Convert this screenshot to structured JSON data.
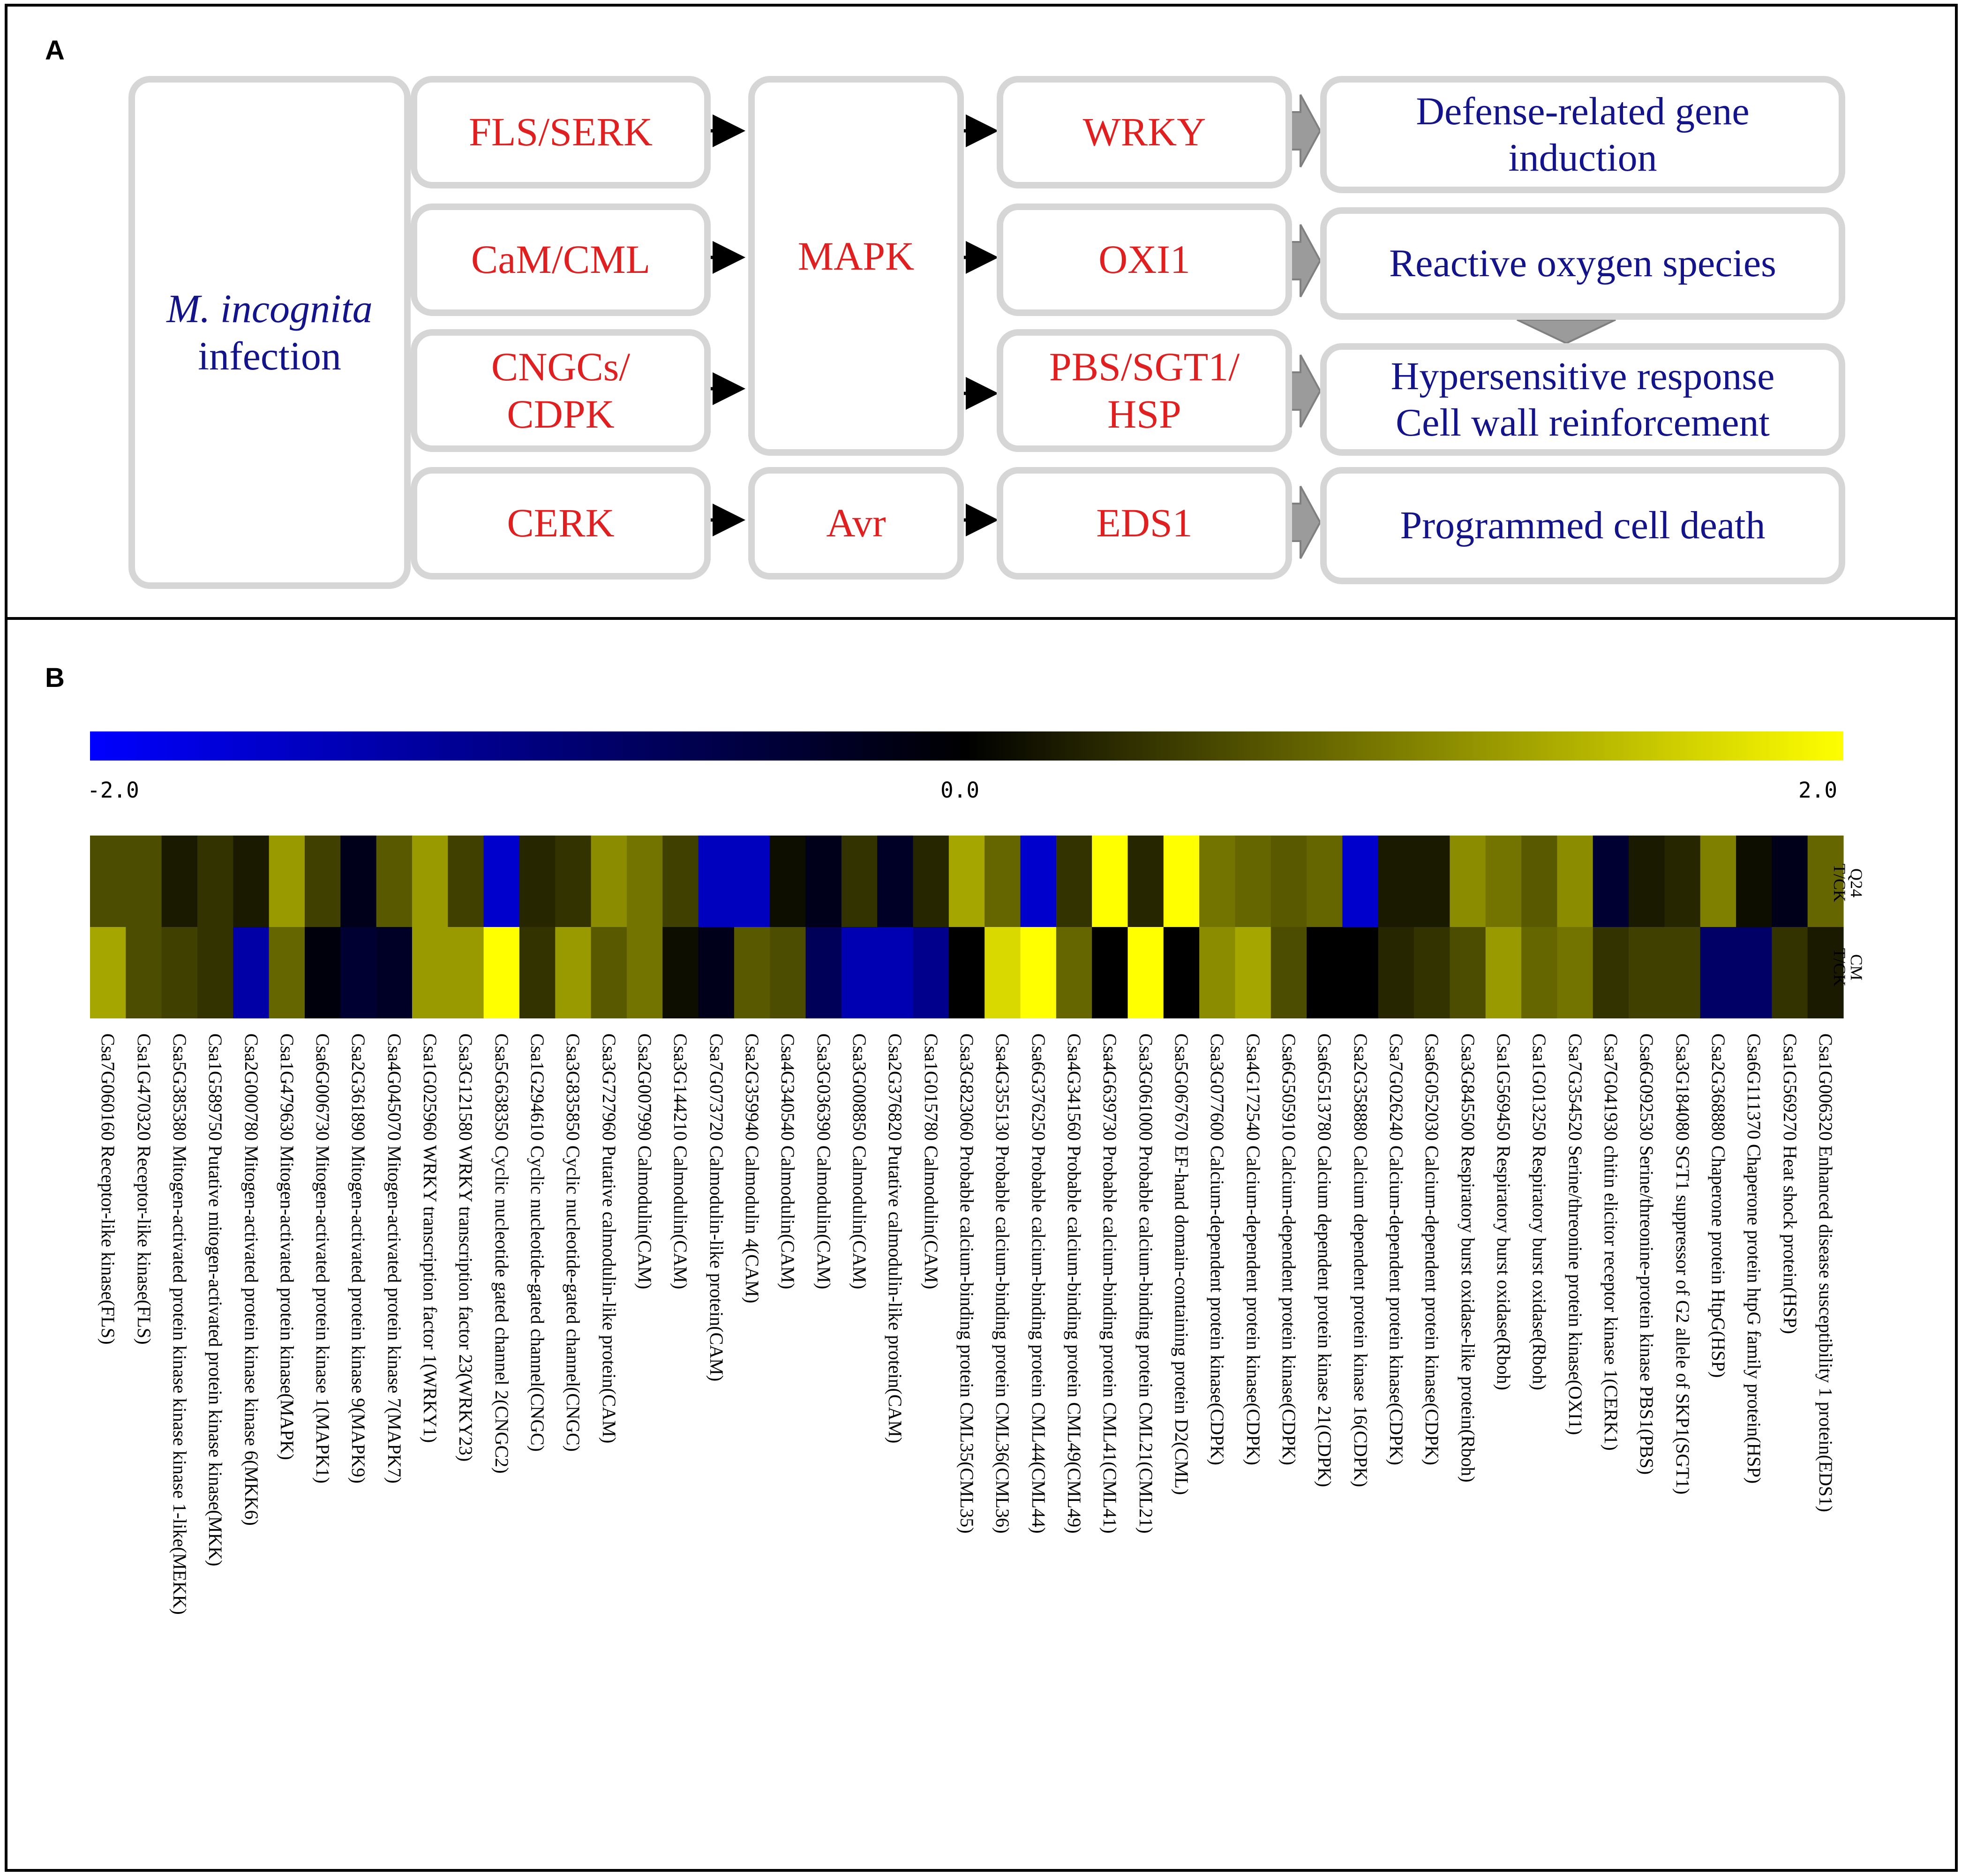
{
  "panel_a": {
    "label": "A",
    "source": "M. incognita",
    "source_suffix": "infection",
    "receptors": [
      "FLS/SERK",
      "CaM/CML",
      "CNGCs/\nCDPK",
      "CERK"
    ],
    "mapk": "MAPK",
    "avr": "Avr",
    "mediators": [
      "WRKY",
      "OXI1",
      "PBS/SGT1/\nHSP",
      "EDS1"
    ],
    "outcomes": [
      "Defense-related gene\ninduction",
      "Reactive oxygen species",
      "Hypersensitive response\nCell wall reinforcement",
      "Programmed cell death"
    ]
  },
  "panel_b": {
    "label": "B",
    "scale": {
      "min_label": "-2.0",
      "mid_label": "0.0",
      "max_label": "2.0",
      "min": -2.0,
      "max": 2.0,
      "color_low": "#0000ff",
      "color_mid": "#000000",
      "color_high": "#ffff00"
    },
    "row_labels": [
      "Q24\nT/CK",
      "CM\nT/CK"
    ],
    "genes": [
      "Csa7G060160 Receptor-like kinase(FLS)",
      "Csa1G470320 Receptor-like kinase(FLS)",
      "Csa5G385380 Mitogen-activated protein kinase kinase kinase 1-like(MEKK)",
      "Csa1G589750 Putative mitogen-activated protein kinase kinase(MKK)",
      "Csa2G000780 Mitogen-activated protein kinase kinase 6(MKK6)",
      "Csa1G479630 Mitogen-activated protein kinase(MAPK)",
      "Csa6G006730 Mitogen-activated protein kinase 1(MAPK1)",
      "Csa2G361890 Mitogen-activated protein kinase 9(MAPK9)",
      "Csa4G045070 Mitogen-activated protein kinase 7(MAPK7)",
      "Csa1G025960 WRKY transcription factor 1(WRKY1)",
      "Csa3G121580 WRKY transcription factor 23(WRKY23)",
      "Csa5G638350 Cyclic nucleotide gated channel 2(CNGC2)",
      "Csa1G294610 Cyclic nucleotide-gated channel(CNGC)",
      "Csa3G835850 Cyclic nucleotide-gated channel(CNGC)",
      "Csa3G727960 Putative calmodulin-like protein(CAM)",
      "Csa2G007990 Calmodulin(CAM)",
      "Csa3G144210 Calmodulin(CAM)",
      "Csa7G073720 Calmodulin-like protein(CAM)",
      "Csa2G359940 Calmodulin 4(CAM)",
      "Csa4G340540 Calmodulin(CAM)",
      "Csa3G036390 Calmodulin(CAM)",
      "Csa3G008850 Calmodulin(CAM)",
      "Csa2G376820 Putative calmodulin-like protein(CAM)",
      "Csa1G015780 Calmodulin(CAM)",
      "Csa3G823060 Probable calcium-binding protein CML35(CML35)",
      "Csa4G355130 Probable calcium-binding protein CML36(CML36)",
      "Csa6G376250 Probable calcium-binding protein CML44(CML44)",
      "Csa4G341560 Probable calcium-binding protein CML49(CML49)",
      "Csa4G639730 Probable calcium-binding protein CML41(CML41)",
      "Csa3G061000 Probable calcium-binding protein CML21(CML21)",
      "Csa5G067670 EF-hand domain-containing protein D2(CML)",
      "Csa3G077600 Calcium-dependent protein kinase(CDPK)",
      "Csa4G172540 Calcium-dependent protein kinase(CDPK)",
      "Csa6G505910 Calcium-dependent protein kinase(CDPK)",
      "Csa6G513780 Calcium dependent protein kinase 21(CDPK)",
      "Csa2G358880 Calcium dependent protein kinase 16(CDPK)",
      "Csa7G026240 Calcium-dependent protein kinase(CDPK)",
      "Csa6G052030 Calcium-dependent protein kinase(CDPK)",
      "Csa3G845500 Respiratory burst oxidase-like protein(Rboh)",
      "Csa1G569450 Respiratory burst oxidase(Rboh)",
      "Csa1G013250 Respiratory burst oxidase(Rboh)",
      "Csa7G354520 Serine/threonine protein kinase(OXI1)",
      "Csa7G041930 chitin elicitor receptor kinase 1(CERK1)",
      "Csa6G092530 Serine/threonine-protein kinase PBS1(PBS)",
      "Csa3G184080 SGT1 suppressor of G2 allele of SKP1(SGT1)",
      "Csa2G368880 Chaperone protein HtpG(HSP)",
      "Csa6G111370 Chaperone protein htpG family protein(HSP)",
      "Csa1G569270 Heat shock protein(HSP)",
      "Csa1G006320 Enhanced disease susceptibility 1 protein(EDS1)"
    ],
    "values_q24": [
      0.6,
      0.6,
      0.2,
      0.4,
      0.2,
      1.2,
      0.5,
      -0.2,
      0.7,
      1.2,
      0.5,
      -1.6,
      0.3,
      0.4,
      1.1,
      0.9,
      0.5,
      -1.5,
      -1.5,
      0.1,
      -0.2,
      0.4,
      -0.3,
      0.3,
      1.3,
      0.8,
      -1.6,
      0.4,
      2.0,
      0.3,
      2.0,
      0.9,
      0.8,
      0.7,
      0.8,
      -1.6,
      0.2,
      0.2,
      1.1,
      0.9,
      0.7,
      1.1,
      -0.4,
      0.2,
      0.3,
      1.0,
      0.1,
      -0.2,
      0.8
    ],
    "values_cm": [
      1.3,
      0.6,
      0.5,
      0.4,
      -1.3,
      0.8,
      -0.1,
      -0.4,
      -0.3,
      1.2,
      1.2,
      2.0,
      0.4,
      1.2,
      0.7,
      0.9,
      0.1,
      -0.2,
      0.7,
      0.6,
      -0.7,
      -1.4,
      -1.4,
      -1.1,
      0.0,
      1.7,
      2.0,
      0.8,
      0.0,
      2.0,
      0.0,
      1.1,
      1.3,
      0.6,
      0.0,
      0.0,
      0.3,
      0.4,
      0.6,
      1.2,
      0.8,
      0.9,
      0.4,
      0.5,
      0.5,
      -0.8,
      -0.8,
      0.4,
      0.2
    ]
  }
}
